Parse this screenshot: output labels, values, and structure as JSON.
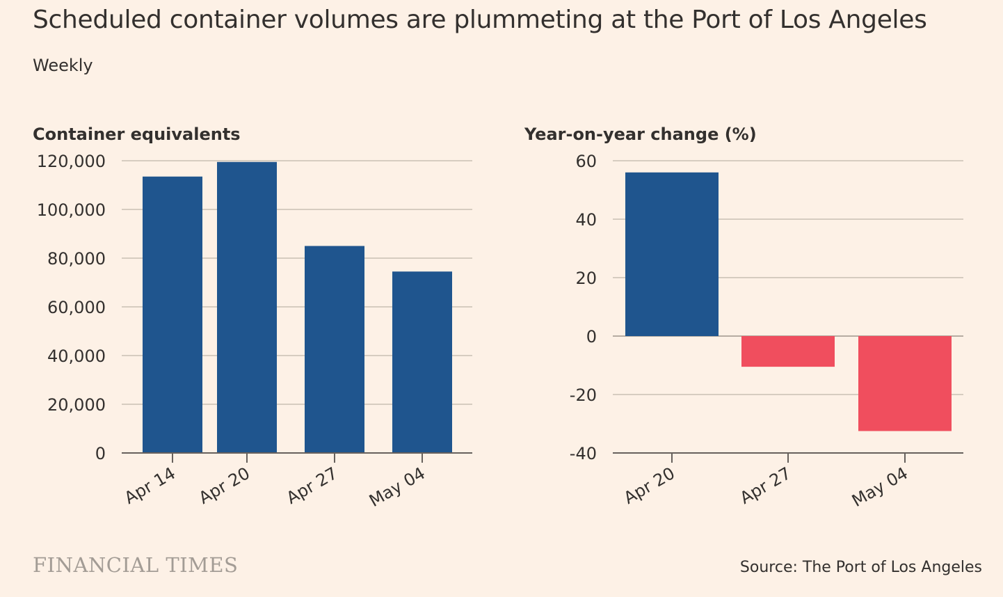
{
  "title": "Scheduled container volumes are plummeting at the Port of Los Angeles",
  "subtitle": "Weekly",
  "brand": "FINANCIAL TIMES",
  "source": "Source: The Port of Los Angeles",
  "colors": {
    "background": "#fdf1e6",
    "positive_bar": "#1f558e",
    "negative_bar": "#f04e5e",
    "gridline": "#c9bfb4",
    "axis": "#66605c",
    "text": "#33302e"
  },
  "chart_data": [
    {
      "type": "bar",
      "title": "Container equivalents",
      "categories": [
        "Apr 14",
        "Apr 20",
        "Apr 27",
        "May 04"
      ],
      "values": [
        113500,
        119500,
        85000,
        74500
      ],
      "ylim": [
        0,
        120000
      ],
      "yticks": [
        0,
        20000,
        40000,
        60000,
        80000,
        100000,
        120000
      ],
      "ytick_labels": [
        "0",
        "20,000",
        "40,000",
        "60,000",
        "80,000",
        "100,000",
        "120,000"
      ],
      "grid": true
    },
    {
      "type": "bar",
      "title": "Year-on-year change (%)",
      "categories": [
        "Apr 20",
        "Apr 27",
        "May 04"
      ],
      "values": [
        56,
        -10.5,
        -32.5
      ],
      "ylim": [
        -40,
        60
      ],
      "yticks": [
        -40,
        -20,
        0,
        20,
        40,
        60
      ],
      "ytick_labels": [
        "-40",
        "-20",
        "0",
        "20",
        "40",
        "60"
      ],
      "grid": true
    }
  ]
}
